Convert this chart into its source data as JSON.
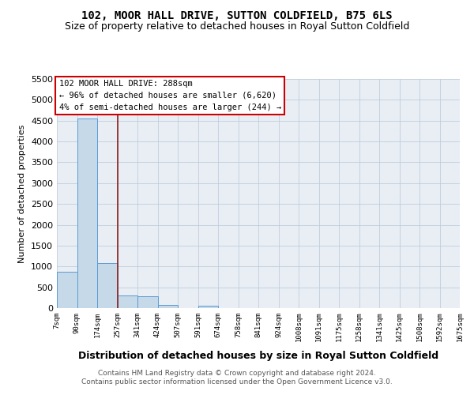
{
  "title": "102, MOOR HALL DRIVE, SUTTON COLDFIELD, B75 6LS",
  "subtitle": "Size of property relative to detached houses in Royal Sutton Coldfield",
  "xlabel": "Distribution of detached houses by size in Royal Sutton Coldfield",
  "ylabel": "Number of detached properties",
  "footer_line1": "Contains HM Land Registry data © Crown copyright and database right 2024.",
  "footer_line2": "Contains public sector information licensed under the Open Government Licence v3.0.",
  "bin_labels": [
    "7sqm",
    "90sqm",
    "174sqm",
    "257sqm",
    "341sqm",
    "424sqm",
    "507sqm",
    "591sqm",
    "674sqm",
    "758sqm",
    "841sqm",
    "924sqm",
    "1008sqm",
    "1091sqm",
    "1175sqm",
    "1258sqm",
    "1341sqm",
    "1425sqm",
    "1508sqm",
    "1592sqm",
    "1675sqm"
  ],
  "bar_heights": [
    880,
    4550,
    1080,
    300,
    280,
    80,
    0,
    60,
    0,
    0,
    0,
    0,
    0,
    0,
    0,
    0,
    0,
    0,
    0,
    0
  ],
  "bar_color": "#c5d9e8",
  "bar_edge_color": "#5b9bd5",
  "ylim": [
    0,
    5500
  ],
  "yticks": [
    0,
    500,
    1000,
    1500,
    2000,
    2500,
    3000,
    3500,
    4000,
    4500,
    5000,
    5500
  ],
  "red_line_color": "#8b1a1a",
  "annotation_text_line1": "102 MOOR HALL DRIVE: 288sqm",
  "annotation_text_line2": "← 96% of detached houses are smaller (6,620)",
  "annotation_text_line3": "4% of semi-detached houses are larger (244) →",
  "annotation_box_color": "#cc0000",
  "background_color": "#e8eef4"
}
